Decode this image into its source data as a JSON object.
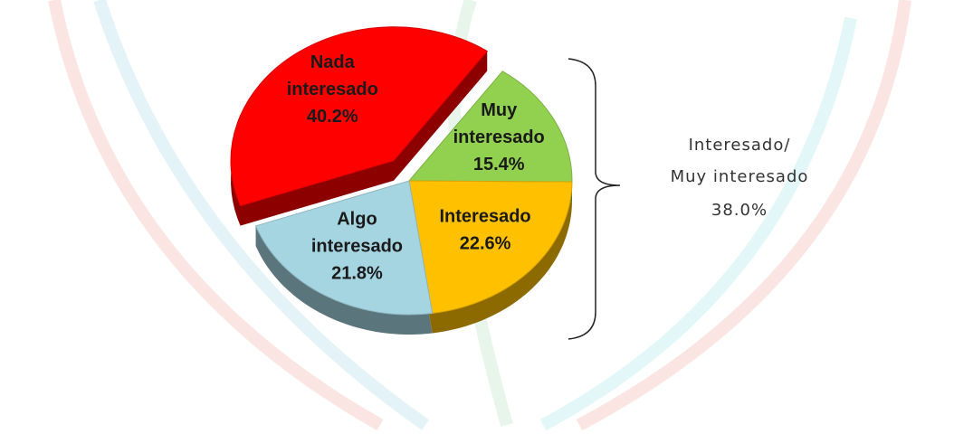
{
  "chart_data": {
    "type": "pie",
    "categories": [
      "Muy interesado",
      "Interesado",
      "Algo interesado",
      "Nada interesado"
    ],
    "values": [
      15.4,
      22.6,
      21.8,
      40.2
    ],
    "value_labels": [
      "15.4%",
      "22.6%",
      "21.8%",
      "40.2%"
    ],
    "colors": [
      "#92d050",
      "#ffc000",
      "#a6d5e2",
      "#ff0000"
    ],
    "exploded": [
      false,
      false,
      false,
      true
    ],
    "annotation": [
      "Interesado/",
      "Muy interesado",
      "38.0%"
    ]
  }
}
